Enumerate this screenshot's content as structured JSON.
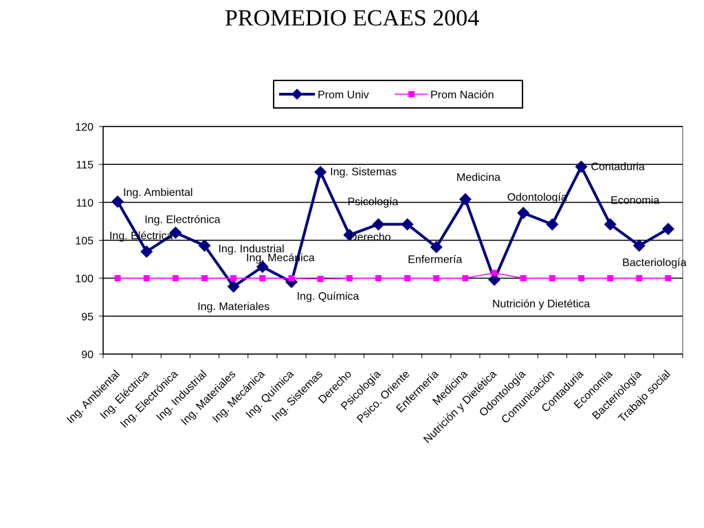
{
  "chart_data": {
    "type": "line",
    "title": "PROMEDIO ECAES 2004",
    "xlabel": "",
    "ylabel": "",
    "ylim": [
      90,
      120
    ],
    "yticks": [
      90,
      95,
      100,
      105,
      110,
      115,
      120
    ],
    "grid": true,
    "legend_position": "top-center",
    "categories": [
      "Ing. Ambiental",
      "Ing. Eléctrica",
      "Ing. Electrónica",
      "Ing. Industrial",
      "Ing. Materiales",
      "Ing. Mecánica",
      "Ing. Química",
      "Ing. Sistemas",
      "Derecho",
      "Psicología",
      "Psico. Oriente",
      "Enfermería",
      "Medicina",
      "Nutrición y Dietética",
      "Odontología",
      "Comunicación",
      "Contaduria",
      "Economia",
      "Bacteriología",
      "Trabajo social"
    ],
    "series": [
      {
        "name": "Prom  Univ",
        "color": "#000080",
        "marker": "diamond",
        "values": [
          110.1,
          103.5,
          106.0,
          104.3,
          98.9,
          101.5,
          99.5,
          114.0,
          105.7,
          107.1,
          107.1,
          104.1,
          110.4,
          99.8,
          108.6,
          107.1,
          114.7,
          107.1,
          104.3,
          106.5
        ]
      },
      {
        "name": "Prom Nación",
        "color": "#ff00ff",
        "marker": "square",
        "values": [
          100.0,
          100.0,
          100.0,
          100.0,
          100.0,
          100.0,
          100.0,
          99.9,
          100.0,
          100.0,
          100.0,
          100.0,
          100.0,
          100.7,
          100.0,
          100.0,
          100.0,
          100.0,
          100.0,
          100.0
        ]
      }
    ],
    "annotations": [
      {
        "text": "Ing. Ambiental",
        "category": 0
      },
      {
        "text": "Ing. Eléctrica",
        "category": 1
      },
      {
        "text": "Ing. Electrónica",
        "category": 2
      },
      {
        "text": "Ing. Industrial",
        "category": 3
      },
      {
        "text": "Ing. Materiales",
        "category": 4
      },
      {
        "text": "Ing. Mecánica",
        "category": 5
      },
      {
        "text": "Ing. Química",
        "category": 6
      },
      {
        "text": "Ing. Sistemas",
        "category": 7
      },
      {
        "text": "Derecho",
        "category": 8
      },
      {
        "text": "Psicología",
        "category": 9
      },
      {
        "text": "Enfermería",
        "category": 11
      },
      {
        "text": "Medicina",
        "category": 12
      },
      {
        "text": "Nutrición y Dietética",
        "category": 13
      },
      {
        "text": "Odontología",
        "category": 14
      },
      {
        "text": "Contaduria",
        "category": 16
      },
      {
        "text": "Economia",
        "category": 17
      },
      {
        "text": "Bacteriología",
        "category": 18
      }
    ]
  }
}
